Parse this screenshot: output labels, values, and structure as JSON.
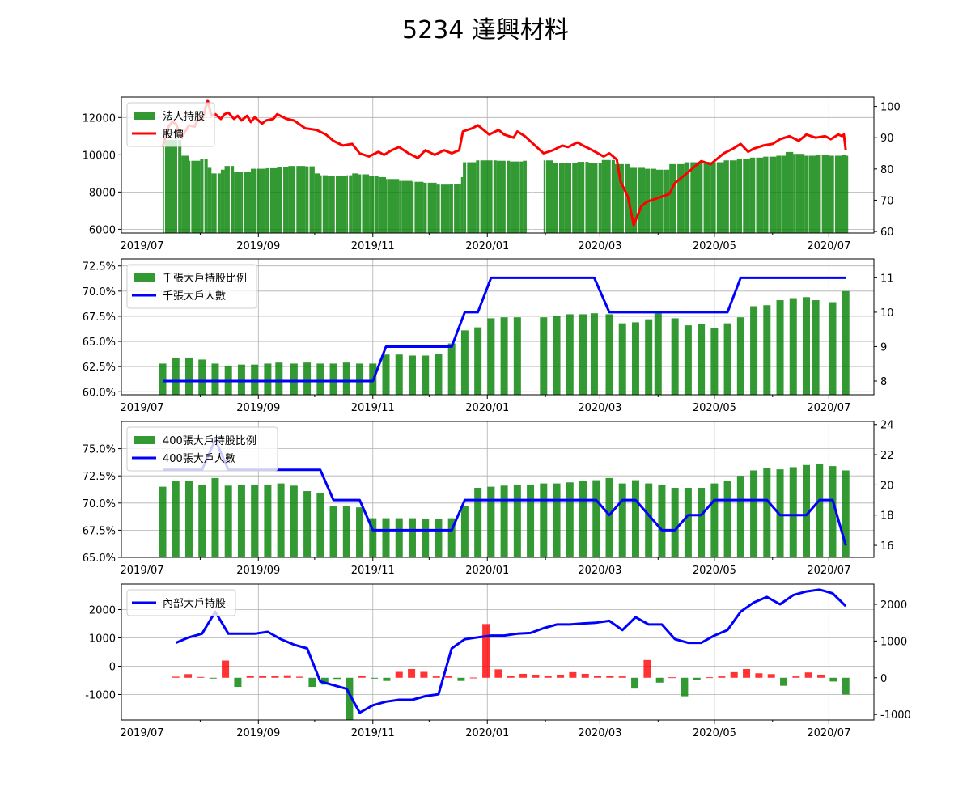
{
  "title": "5234 達興材料",
  "colors": {
    "green": "#008000",
    "red": "#ff0000",
    "blue": "#0000ff",
    "grid": "#b0b0b0"
  },
  "x_tick_labels": [
    "2019/07",
    "2019/09",
    "2019/11",
    "2020/01",
    "2020/03",
    "2020/05",
    "2020/07"
  ],
  "chart_data": [
    {
      "type": "bar+line",
      "name": "panel-1",
      "legend": [
        "法人持股",
        "股價"
      ],
      "legend_placement": "top-left",
      "xlim": [
        "2019-06-20",
        "2020-07-25"
      ],
      "y_left": {
        "ticks": [
          6000,
          8000,
          10000,
          12000
        ],
        "ylim": [
          5800,
          13100
        ]
      },
      "y_right": {
        "ticks": [
          60,
          70,
          80,
          90,
          100
        ],
        "ylim": [
          59.5,
          103
        ]
      },
      "bars_daily": [
        [
          "2019-07-12",
          10800
        ],
        [
          "2019-07-22",
          9950
        ],
        [
          "2019-07-26",
          9680
        ],
        [
          "2019-08-01",
          9790
        ],
        [
          "2019-08-05",
          9300
        ],
        [
          "2019-08-07",
          9000
        ],
        [
          "2019-08-12",
          9200
        ],
        [
          "2019-08-14",
          9400
        ],
        [
          "2019-08-19",
          9080
        ],
        [
          "2019-08-23",
          9100
        ],
        [
          "2019-08-28",
          9250
        ],
        [
          "2019-09-05",
          9280
        ],
        [
          "2019-09-11",
          9340
        ],
        [
          "2019-09-17",
          9400
        ],
        [
          "2019-09-26",
          9380
        ],
        [
          "2019-10-01",
          9000
        ],
        [
          "2019-10-04",
          8900
        ],
        [
          "2019-10-08",
          8860
        ],
        [
          "2019-10-15",
          8850
        ],
        [
          "2019-10-18",
          8900
        ],
        [
          "2019-10-21",
          9000
        ],
        [
          "2019-10-24",
          8950
        ],
        [
          "2019-10-30",
          8850
        ],
        [
          "2019-11-04",
          8800
        ],
        [
          "2019-11-08",
          8700
        ],
        [
          "2019-11-15",
          8600
        ],
        [
          "2019-11-22",
          8550
        ],
        [
          "2019-11-28",
          8500
        ],
        [
          "2019-12-05",
          8400
        ],
        [
          "2019-12-12",
          8420
        ],
        [
          "2019-12-17",
          8450
        ],
        [
          "2019-12-18",
          8800
        ],
        [
          "2019-12-19",
          9600
        ],
        [
          "2019-12-26",
          9700
        ],
        [
          "2020-01-06",
          9680
        ],
        [
          "2020-01-13",
          9640
        ],
        [
          "2020-01-20",
          9680
        ],
        [
          "2020-01-31",
          9700
        ],
        [
          "2020-02-05",
          9580
        ],
        [
          "2020-02-11",
          9550
        ],
        [
          "2020-02-18",
          9620
        ],
        [
          "2020-02-24",
          9560
        ],
        [
          "2020-03-02",
          9720
        ],
        [
          "2020-03-09",
          9500
        ],
        [
          "2020-03-17",
          9300
        ],
        [
          "2020-03-25",
          9250
        ],
        [
          "2020-03-31",
          9200
        ],
        [
          "2020-04-07",
          9500
        ],
        [
          "2020-04-15",
          9600
        ],
        [
          "2020-04-22",
          9620
        ],
        [
          "2020-04-29",
          9600
        ],
        [
          "2020-05-06",
          9700
        ],
        [
          "2020-05-13",
          9800
        ],
        [
          "2020-05-20",
          9850
        ],
        [
          "2020-05-27",
          9900
        ],
        [
          "2020-06-03",
          9950
        ],
        [
          "2020-06-08",
          10150
        ],
        [
          "2020-06-12",
          10050
        ],
        [
          "2020-06-18",
          9950
        ],
        [
          "2020-06-24",
          9980
        ],
        [
          "2020-07-01",
          9950
        ],
        [
          "2020-07-08",
          10000
        ],
        [
          "2020-07-10",
          9950
        ]
      ],
      "price_line": [
        [
          "2019-07-12",
          87
        ],
        [
          "2019-07-15",
          93.5
        ],
        [
          "2019-07-17",
          95
        ],
        [
          "2019-07-19",
          94.5
        ],
        [
          "2019-07-22",
          90
        ],
        [
          "2019-07-24",
          92
        ],
        [
          "2019-07-26",
          94
        ],
        [
          "2019-07-29",
          93.5
        ],
        [
          "2019-07-31",
          96
        ],
        [
          "2019-08-02",
          95.5
        ],
        [
          "2019-08-05",
          102
        ],
        [
          "2019-08-07",
          97
        ],
        [
          "2019-08-09",
          97.5
        ],
        [
          "2019-08-12",
          96
        ],
        [
          "2019-08-14",
          97.5
        ],
        [
          "2019-08-16",
          98
        ],
        [
          "2019-08-19",
          96
        ],
        [
          "2019-08-21",
          97
        ],
        [
          "2019-08-23",
          95.5
        ],
        [
          "2019-08-26",
          97
        ],
        [
          "2019-08-28",
          95
        ],
        [
          "2019-08-30",
          96.5
        ],
        [
          "2019-09-03",
          94.5
        ],
        [
          "2019-09-05",
          95.5
        ],
        [
          "2019-09-09",
          96
        ],
        [
          "2019-09-11",
          97.5
        ],
        [
          "2019-09-16",
          96
        ],
        [
          "2019-09-20",
          95.5
        ],
        [
          "2019-09-26",
          93
        ],
        [
          "2019-10-02",
          92.5
        ],
        [
          "2019-10-07",
          91
        ],
        [
          "2019-10-11",
          89
        ],
        [
          "2019-10-16",
          87.5
        ],
        [
          "2019-10-21",
          88
        ],
        [
          "2019-10-25",
          85
        ],
        [
          "2019-10-30",
          84
        ],
        [
          "2019-11-04",
          85.5
        ],
        [
          "2019-11-07",
          84.5
        ],
        [
          "2019-11-11",
          86
        ],
        [
          "2019-11-15",
          87
        ],
        [
          "2019-11-20",
          85
        ],
        [
          "2019-11-25",
          83.5
        ],
        [
          "2019-11-29",
          86
        ],
        [
          "2019-12-04",
          84.5
        ],
        [
          "2019-12-09",
          86
        ],
        [
          "2019-12-13",
          85
        ],
        [
          "2019-12-17",
          86
        ],
        [
          "2019-12-19",
          92
        ],
        [
          "2019-12-24",
          93
        ],
        [
          "2019-12-27",
          94
        ],
        [
          "2020-01-02",
          91
        ],
        [
          "2020-01-07",
          92.5
        ],
        [
          "2020-01-10",
          91
        ],
        [
          "2020-01-15",
          90
        ],
        [
          "2020-01-17",
          92
        ],
        [
          "2020-01-21",
          90.5
        ],
        [
          "2020-01-31",
          85
        ],
        [
          "2020-02-05",
          86
        ],
        [
          "2020-02-10",
          87.5
        ],
        [
          "2020-02-13",
          87
        ],
        [
          "2020-02-18",
          88.5
        ],
        [
          "2020-02-21",
          87.5
        ],
        [
          "2020-02-26",
          86
        ],
        [
          "2020-03-03",
          84
        ],
        [
          "2020-03-06",
          85
        ],
        [
          "2020-03-10",
          83
        ],
        [
          "2020-03-12",
          76
        ],
        [
          "2020-03-16",
          71
        ],
        [
          "2020-03-19",
          62
        ],
        [
          "2020-03-23",
          68
        ],
        [
          "2020-03-26",
          69.5
        ],
        [
          "2020-03-31",
          70.5
        ],
        [
          "2020-04-07",
          72
        ],
        [
          "2020-04-10",
          75.5
        ],
        [
          "2020-04-15",
          78
        ],
        [
          "2020-04-20",
          80.5
        ],
        [
          "2020-04-24",
          82.5
        ],
        [
          "2020-04-29",
          81.5
        ],
        [
          "2020-05-06",
          85
        ],
        [
          "2020-05-11",
          86.5
        ],
        [
          "2020-05-15",
          88
        ],
        [
          "2020-05-19",
          85.5
        ],
        [
          "2020-05-22",
          86.5
        ],
        [
          "2020-05-27",
          87.5
        ],
        [
          "2020-06-01",
          88
        ],
        [
          "2020-06-05",
          89.5
        ],
        [
          "2020-06-10",
          90.5
        ],
        [
          "2020-06-15",
          89
        ],
        [
          "2020-06-19",
          91
        ],
        [
          "2020-06-24",
          90
        ],
        [
          "2020-06-29",
          90.5
        ],
        [
          "2020-07-02",
          89.5
        ],
        [
          "2020-07-06",
          91
        ],
        [
          "2020-07-08",
          90.5
        ],
        [
          "2020-07-09",
          91
        ],
        [
          "2020-07-10",
          86
        ]
      ]
    },
    {
      "type": "bar+line",
      "name": "panel-2",
      "legend": [
        "千張大戶持股比例",
        "千張大戶人數"
      ],
      "legend_placement": "top-left",
      "y_left": {
        "ticks": [
          60.0,
          62.5,
          65.0,
          67.5,
          70.0,
          72.5
        ],
        "ylim": [
          59.7,
          73.2
        ],
        "format": "percent"
      },
      "y_right": {
        "ticks": [
          8,
          9,
          10,
          11
        ],
        "ylim": [
          7.6,
          11.55
        ]
      },
      "weeks": [
        "2019-07-12",
        "2019-07-19",
        "2019-07-26",
        "2019-08-02",
        "2019-08-09",
        "2019-08-16",
        "2019-08-23",
        "2019-08-30",
        "2019-09-06",
        "2019-09-12",
        "2019-09-20",
        "2019-09-27",
        "2019-10-04",
        "2019-10-11",
        "2019-10-18",
        "2019-10-25",
        "2019-11-01",
        "2019-11-08",
        "2019-11-15",
        "2019-11-22",
        "2019-11-29",
        "2019-12-06",
        "2019-12-13",
        "2019-12-20",
        "2019-12-27",
        "2020-01-03",
        "2020-01-10",
        "2020-01-17",
        "2020-01-31",
        "2020-02-07",
        "2020-02-14",
        "2020-02-21",
        "2020-02-27",
        "2020-03-06",
        "2020-03-13",
        "2020-03-20",
        "2020-03-27",
        "2020-04-01",
        "2020-04-10",
        "2020-04-17",
        "2020-04-24",
        "2020-05-01",
        "2020-05-08",
        "2020-05-15",
        "2020-05-22",
        "2020-05-29",
        "2020-06-05",
        "2020-06-12",
        "2020-06-19",
        "2020-06-24",
        "2020-07-03",
        "2020-07-10"
      ],
      "bar_values": [
        62.8,
        63.4,
        63.4,
        63.2,
        62.8,
        62.6,
        62.7,
        62.7,
        62.8,
        62.9,
        62.8,
        62.9,
        62.8,
        62.8,
        62.9,
        62.8,
        62.8,
        63.7,
        63.7,
        63.6,
        63.6,
        63.8,
        64.8,
        66.1,
        66.4,
        67.3,
        67.4,
        67.4,
        67.4,
        67.5,
        67.7,
        67.7,
        67.8,
        67.7,
        66.8,
        66.9,
        67.2,
        67.8,
        67.3,
        66.6,
        66.7,
        66.3,
        66.8,
        67.4,
        68.5,
        68.6,
        69.1,
        69.3,
        69.4,
        69.1,
        68.9,
        70.0
      ],
      "line_values": [
        8,
        8,
        8,
        8,
        8,
        8,
        8,
        8,
        8,
        8,
        8,
        8,
        8,
        8,
        8,
        8,
        8,
        9,
        9,
        9,
        9,
        9,
        9,
        10,
        10,
        11,
        11,
        11,
        11,
        11,
        11,
        11,
        11,
        10,
        10,
        10,
        10,
        10,
        10,
        10,
        10,
        10,
        10,
        11,
        11,
        11,
        11,
        11,
        11,
        11,
        11,
        11
      ]
    },
    {
      "type": "bar+line",
      "name": "panel-3",
      "legend": [
        "400張大戶持股比例",
        "400張大戶人數"
      ],
      "legend_placement": "top-left",
      "y_left": {
        "ticks": [
          65.0,
          67.5,
          70.0,
          72.5,
          75.0
        ],
        "ylim": [
          65.0,
          77.5
        ],
        "format": "percent"
      },
      "y_right": {
        "ticks": [
          16,
          18,
          20,
          22,
          24
        ],
        "ylim": [
          15.2,
          24.2
        ]
      },
      "bar_values": [
        71.5,
        72.0,
        72.0,
        71.7,
        72.3,
        71.6,
        71.7,
        71.7,
        71.7,
        71.8,
        71.6,
        71.1,
        70.9,
        69.7,
        69.7,
        69.6,
        68.6,
        68.6,
        68.6,
        68.6,
        68.5,
        68.5,
        68.6,
        69.7,
        71.4,
        71.5,
        71.6,
        71.7,
        71.7,
        71.8,
        71.8,
        71.9,
        72.0,
        72.1,
        72.3,
        71.8,
        72.1,
        71.8,
        71.7,
        71.4,
        71.4,
        71.4,
        71.8,
        72.0,
        72.5,
        73.0,
        73.2,
        73.1,
        73.3,
        73.5,
        73.6,
        73.4,
        73.0
      ],
      "line_values": [
        21,
        21,
        21,
        21,
        23,
        21,
        21,
        21,
        21,
        21,
        21,
        21,
        21,
        19,
        19,
        19,
        17,
        17,
        17,
        17,
        17,
        17,
        17,
        19,
        19,
        19,
        19,
        19,
        19,
        19,
        19,
        19,
        19,
        19,
        18,
        19,
        19,
        18,
        17,
        17,
        18,
        18,
        19,
        19,
        19,
        19,
        19,
        18,
        18,
        18,
        19,
        19,
        16
      ]
    },
    {
      "type": "bar+line",
      "name": "panel-4",
      "legend": [
        "內部大戶持股"
      ],
      "legend_placement": "top-left",
      "y_left": {
        "ticks": [
          -1000,
          0,
          1000,
          2000
        ],
        "ylim": [
          -1900,
          2900
        ]
      },
      "y_right": {
        "ticks": [
          -1000,
          0,
          1000,
          2000
        ],
        "ylim": [
          -1150,
          2550
        ]
      },
      "bar_values": [
        -370,
        -280,
        -380,
        -430,
        200,
        -730,
        -350,
        -350,
        -350,
        -320,
        -370,
        -730,
        -650,
        -450,
        -1900,
        -330,
        -420,
        -520,
        -200,
        -100,
        -200,
        -360,
        -340,
        -520,
        -400,
        1490,
        -110,
        -350,
        -270,
        -300,
        -350,
        -300,
        -210,
        -270,
        -350,
        -350,
        -360,
        -790,
        220,
        -580,
        -390,
        -1060,
        -500,
        -390,
        -360,
        -210,
        -100,
        -250,
        -280,
        -690,
        -360,
        -220,
        -300,
        -540,
        -1000
      ],
      "bar_colors_positive_red": true,
      "line_values": [
        950,
        1100,
        1200,
        1800,
        1200,
        1200,
        1200,
        1250,
        1050,
        900,
        800,
        -100,
        -200,
        -300,
        -950,
        -750,
        -650,
        -600,
        -600,
        -500,
        -450,
        800,
        1050,
        1100,
        1150,
        1150,
        1200,
        1220,
        1350,
        1450,
        1450,
        1480,
        1500,
        1550,
        1300,
        1650,
        1450,
        1450,
        1050,
        950,
        950,
        1150,
        1300,
        1800,
        2050,
        2200,
        2000,
        2250,
        2350,
        2400,
        2300,
        1950
      ]
    }
  ]
}
